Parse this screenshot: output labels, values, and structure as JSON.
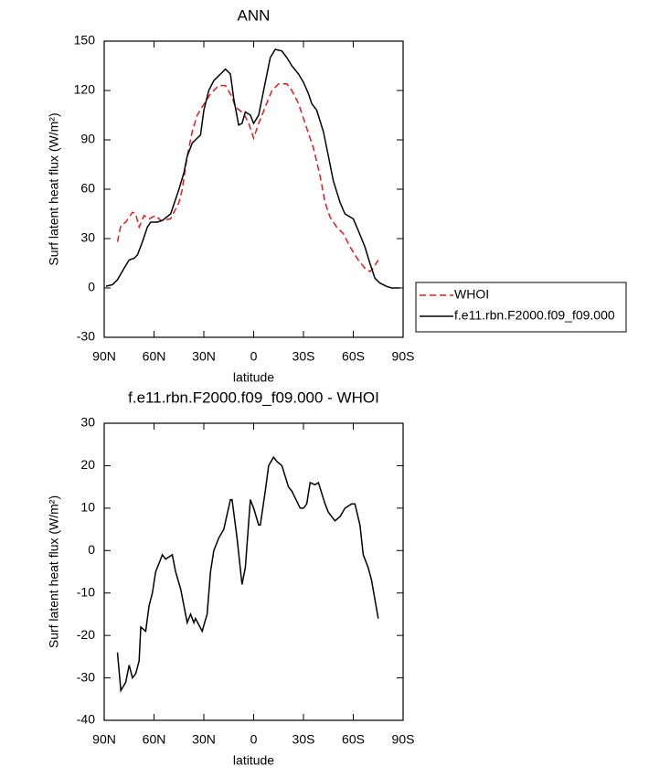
{
  "chart_data": [
    {
      "type": "line",
      "title": "ANN",
      "x_label": "latitude",
      "y_label": "Surf latent heat flux (W/m²)",
      "xlim": [
        90,
        -90
      ],
      "xticks": [
        {
          "value": 90,
          "label": "90N"
        },
        {
          "value": 60,
          "label": "60N"
        },
        {
          "value": 30,
          "label": "30N"
        },
        0,
        {
          "value": -30,
          "label": "30S"
        },
        {
          "value": -60,
          "label": "60S"
        },
        {
          "value": -90,
          "label": "90S"
        }
      ],
      "ylim": [
        -30,
        150
      ],
      "yticks": [
        -30,
        0,
        30,
        60,
        90,
        120,
        150
      ],
      "legend": "right",
      "series": [
        {
          "name": "WHOI",
          "color": "#e41a1c",
          "style": "dashed",
          "x": [
            82,
            80,
            77,
            73,
            71,
            69,
            66,
            63,
            59,
            56,
            50,
            45,
            43,
            40,
            37,
            34,
            31,
            26,
            21,
            17,
            13,
            11,
            6,
            3,
            0,
            -3,
            -7,
            -11,
            -15,
            -20,
            -23,
            -27,
            -32,
            -36,
            -40,
            -43,
            -46,
            -50,
            -54,
            -58,
            -63,
            -67,
            -70,
            -72,
            -75
          ],
          "values": [
            28,
            38,
            40,
            46,
            45,
            37,
            44,
            42,
            44,
            41,
            42,
            52,
            60,
            80,
            95,
            105,
            110,
            118,
            123,
            123,
            116,
            110,
            106,
            100,
            91,
            100,
            110,
            120,
            124,
            124,
            120,
            112,
            97,
            85,
            68,
            52,
            43,
            37,
            33,
            25,
            17,
            12,
            10,
            12,
            17
          ]
        },
        {
          "name": "f.e11.rbn.F2000.f09_f09.000",
          "color": "#000000",
          "style": "solid",
          "x": [
            89,
            85,
            82,
            78,
            75,
            72,
            70,
            67,
            64,
            62,
            58,
            55,
            50,
            45,
            42,
            40,
            37,
            35,
            32,
            30,
            27,
            24,
            20,
            17,
            14,
            12,
            9,
            7,
            5,
            2,
            0,
            -3,
            -6,
            -10,
            -13,
            -17,
            -20,
            -23,
            -27,
            -30,
            -33,
            -35,
            -38,
            -42,
            -45,
            -48,
            -52,
            -55,
            -60,
            -63,
            -67,
            -70,
            -73,
            -76,
            -80,
            -83,
            -88
          ],
          "values": [
            1,
            2,
            5,
            12,
            17,
            18,
            20,
            28,
            37,
            40,
            40,
            41,
            45,
            60,
            70,
            80,
            88,
            90,
            93,
            108,
            120,
            126,
            130,
            133,
            130,
            115,
            99,
            100,
            107,
            105,
            100,
            105,
            120,
            140,
            145,
            144,
            140,
            135,
            130,
            125,
            118,
            112,
            108,
            95,
            80,
            65,
            52,
            45,
            42,
            35,
            25,
            15,
            6,
            3,
            1,
            0,
            0
          ]
        }
      ]
    },
    {
      "type": "line",
      "title": "f.e11.rbn.F2000.f09_f09.000 - WHOI",
      "x_label": "latitude",
      "y_label": "Surf latent heat flux (W/m²)",
      "xlim": [
        90,
        -90
      ],
      "xticks": [
        {
          "value": 90,
          "label": "90N"
        },
        {
          "value": 60,
          "label": "60N"
        },
        {
          "value": 30,
          "label": "30N"
        },
        0,
        {
          "value": -30,
          "label": "30S"
        },
        {
          "value": -60,
          "label": "60S"
        },
        {
          "value": -90,
          "label": "90S"
        }
      ],
      "ylim": [
        -40,
        30
      ],
      "yticks": [
        -40,
        -30,
        -20,
        -10,
        0,
        10,
        20,
        30
      ],
      "series": [
        {
          "color": "#000000",
          "style": "solid",
          "x": [
            82,
            80,
            77,
            75,
            73,
            71,
            69,
            68,
            65,
            63,
            61,
            59,
            56,
            55,
            53,
            49,
            47,
            44,
            40,
            38,
            36,
            35,
            31,
            28,
            26,
            24,
            21,
            18,
            14,
            13,
            10,
            7,
            5,
            2,
            0,
            -3,
            -4,
            -7,
            -9,
            -12,
            -14,
            -17,
            -21,
            -23,
            -28,
            -30,
            -32,
            -34,
            -37,
            -39,
            -43,
            -45,
            -49,
            -52,
            -55,
            -59,
            -61,
            -64,
            -66,
            -69,
            -71,
            -75
          ],
          "values": [
            -24,
            -33,
            -31,
            -27,
            -30,
            -29,
            -26,
            -18,
            -19,
            -13,
            -10,
            -5,
            -2,
            -1,
            -2,
            -1,
            -5,
            -9,
            -17,
            -15,
            -17,
            -16,
            -19,
            -15,
            -5,
            0,
            3,
            5,
            12,
            12,
            3,
            -8,
            -4,
            12,
            10,
            6,
            6,
            14,
            20,
            22,
            21,
            20,
            15,
            14,
            10,
            10,
            11,
            16,
            15.5,
            16,
            11,
            9,
            7,
            8,
            10,
            11,
            11,
            6,
            -1,
            -4,
            -7,
            -16
          ]
        }
      ]
    }
  ]
}
